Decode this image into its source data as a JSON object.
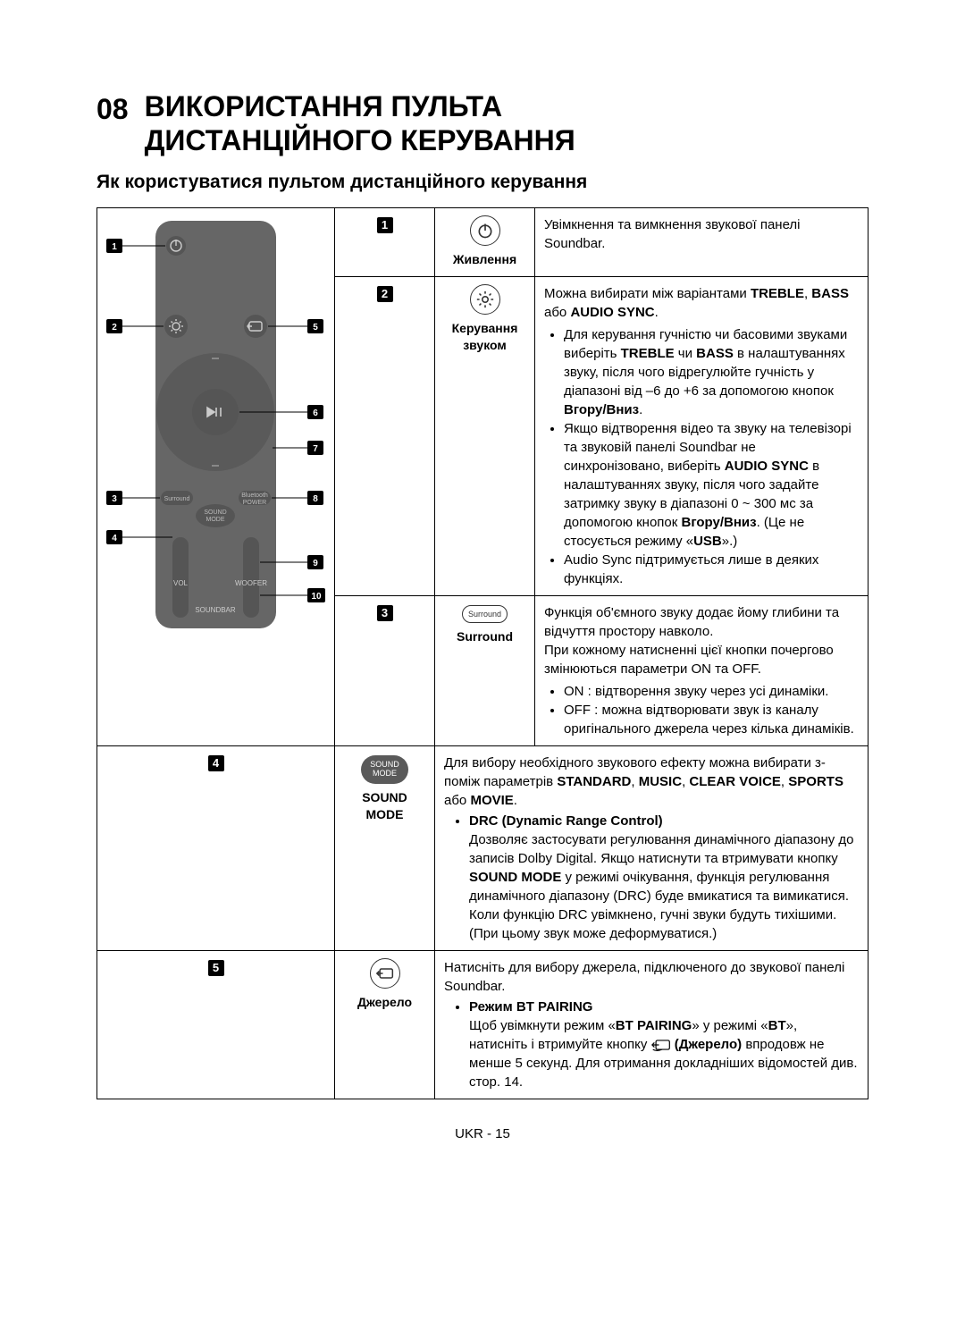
{
  "header": {
    "number": "08",
    "title_line1": "ВИКОРИСТАННЯ ПУЛЬТА",
    "title_line2": "ДИСТАНЦІЙНОГО КЕРУВАННЯ",
    "subtitle": "Як користуватися пультом дистанційного керування"
  },
  "remote": {
    "vol": "VOL",
    "woofer": "WOOFER",
    "soundbar": "SOUNDBAR",
    "surround": "Surround",
    "bt_pair": "Bluetooth",
    "bt_power": "POWER",
    "sound_mode": "SOUND",
    "sound_mode2": "MODE"
  },
  "rows": [
    {
      "num": "1",
      "label": "Живлення",
      "body": "Увімкнення та вимкнення звукової панелі Soundbar."
    },
    {
      "num": "2",
      "label": "Керування звуком",
      "intro_parts": [
        "Можна вибирати між варіантами ",
        "TREBLE",
        ", ",
        "BASS",
        " або ",
        "AUDIO SYNC",
        "."
      ],
      "bullets": [
        {
          "parts": [
            "Для керування гучністю чи басовими звуками виберіть ",
            "TREBLE",
            " чи ",
            "BASS",
            " в налаштуваннях звуку, після чого відрегулюйте гучність у діапазоні від –6 до +6 за допомогою кнопок ",
            "Вгору/Вниз",
            "."
          ]
        },
        {
          "parts": [
            "Якщо відтворення відео та звуку на телевізорі та звуковій панелі Soundbar не синхронізовано, виберіть ",
            "AUDIO SYNC",
            " в налаштуваннях звуку, після чого задайте затримку звуку в діапазоні 0 ~ 300 мс за допомогою кнопок ",
            "Вгору/Вниз",
            ". (Це не стосується режиму «",
            "USB",
            "».)"
          ]
        },
        {
          "parts": [
            "Audio Sync підтримується лише в деяких функціях."
          ]
        }
      ]
    },
    {
      "num": "3",
      "label": "Surround",
      "pill": "Surround",
      "body1": "Функція об'ємного звуку додає йому глибини та відчуття простору навколо.",
      "body2": "При кожному натисненні цієї кнопки почергово змінюються параметри ON та OFF.",
      "bullets": [
        "ON : відтворення звуку через усі динаміки.",
        "OFF : можна відтворювати звук із каналу оригінального джерела через кілька динаміків."
      ]
    },
    {
      "num": "4",
      "label": "SOUND MODE",
      "pill": "SOUND MODE",
      "intro_parts": [
        "Для вибору необхідного звукового ефекту можна вибирати з-поміж параметрів ",
        "STANDARD",
        ", ",
        "MUSIC",
        ", ",
        "CLEAR VOICE",
        ", ",
        "SPORTS",
        " або ",
        "MOVIE",
        "."
      ],
      "sub_head": "DRC (Dynamic Range Control)",
      "sub_body_parts": [
        "Дозволяє застосувати регулювання динамічного діапазону до записів Dolby Digital. Якщо натиснути та втримувати кнопку ",
        "SOUND MODE",
        " у режимі очікування, функція регулювання динамічного діапазону (DRC) буде вмикатися та вимикатися. Коли функцію DRC увімкнено, гучні звуки будуть тихішими. (При цьому звук може деформуватися.)"
      ]
    },
    {
      "num": "5",
      "label": "Джерело",
      "body1": "Натисніть для вибору джерела, підключеного до звукової панелі Soundbar.",
      "sub_head": "Режим BT PAIRING",
      "sub_body_parts": [
        "Щоб увімкнути режим «",
        "BT PAIRING",
        "» у режимі «",
        "BT",
        "», натисніть і втримуйте кнопку "
      ],
      "sub_body_after": " впродовж не менше 5 секунд. Для отримання докладніших відомостей див. стор. 14.",
      "src_label": "(Джерело)"
    }
  ],
  "footer": "UKR - 15"
}
